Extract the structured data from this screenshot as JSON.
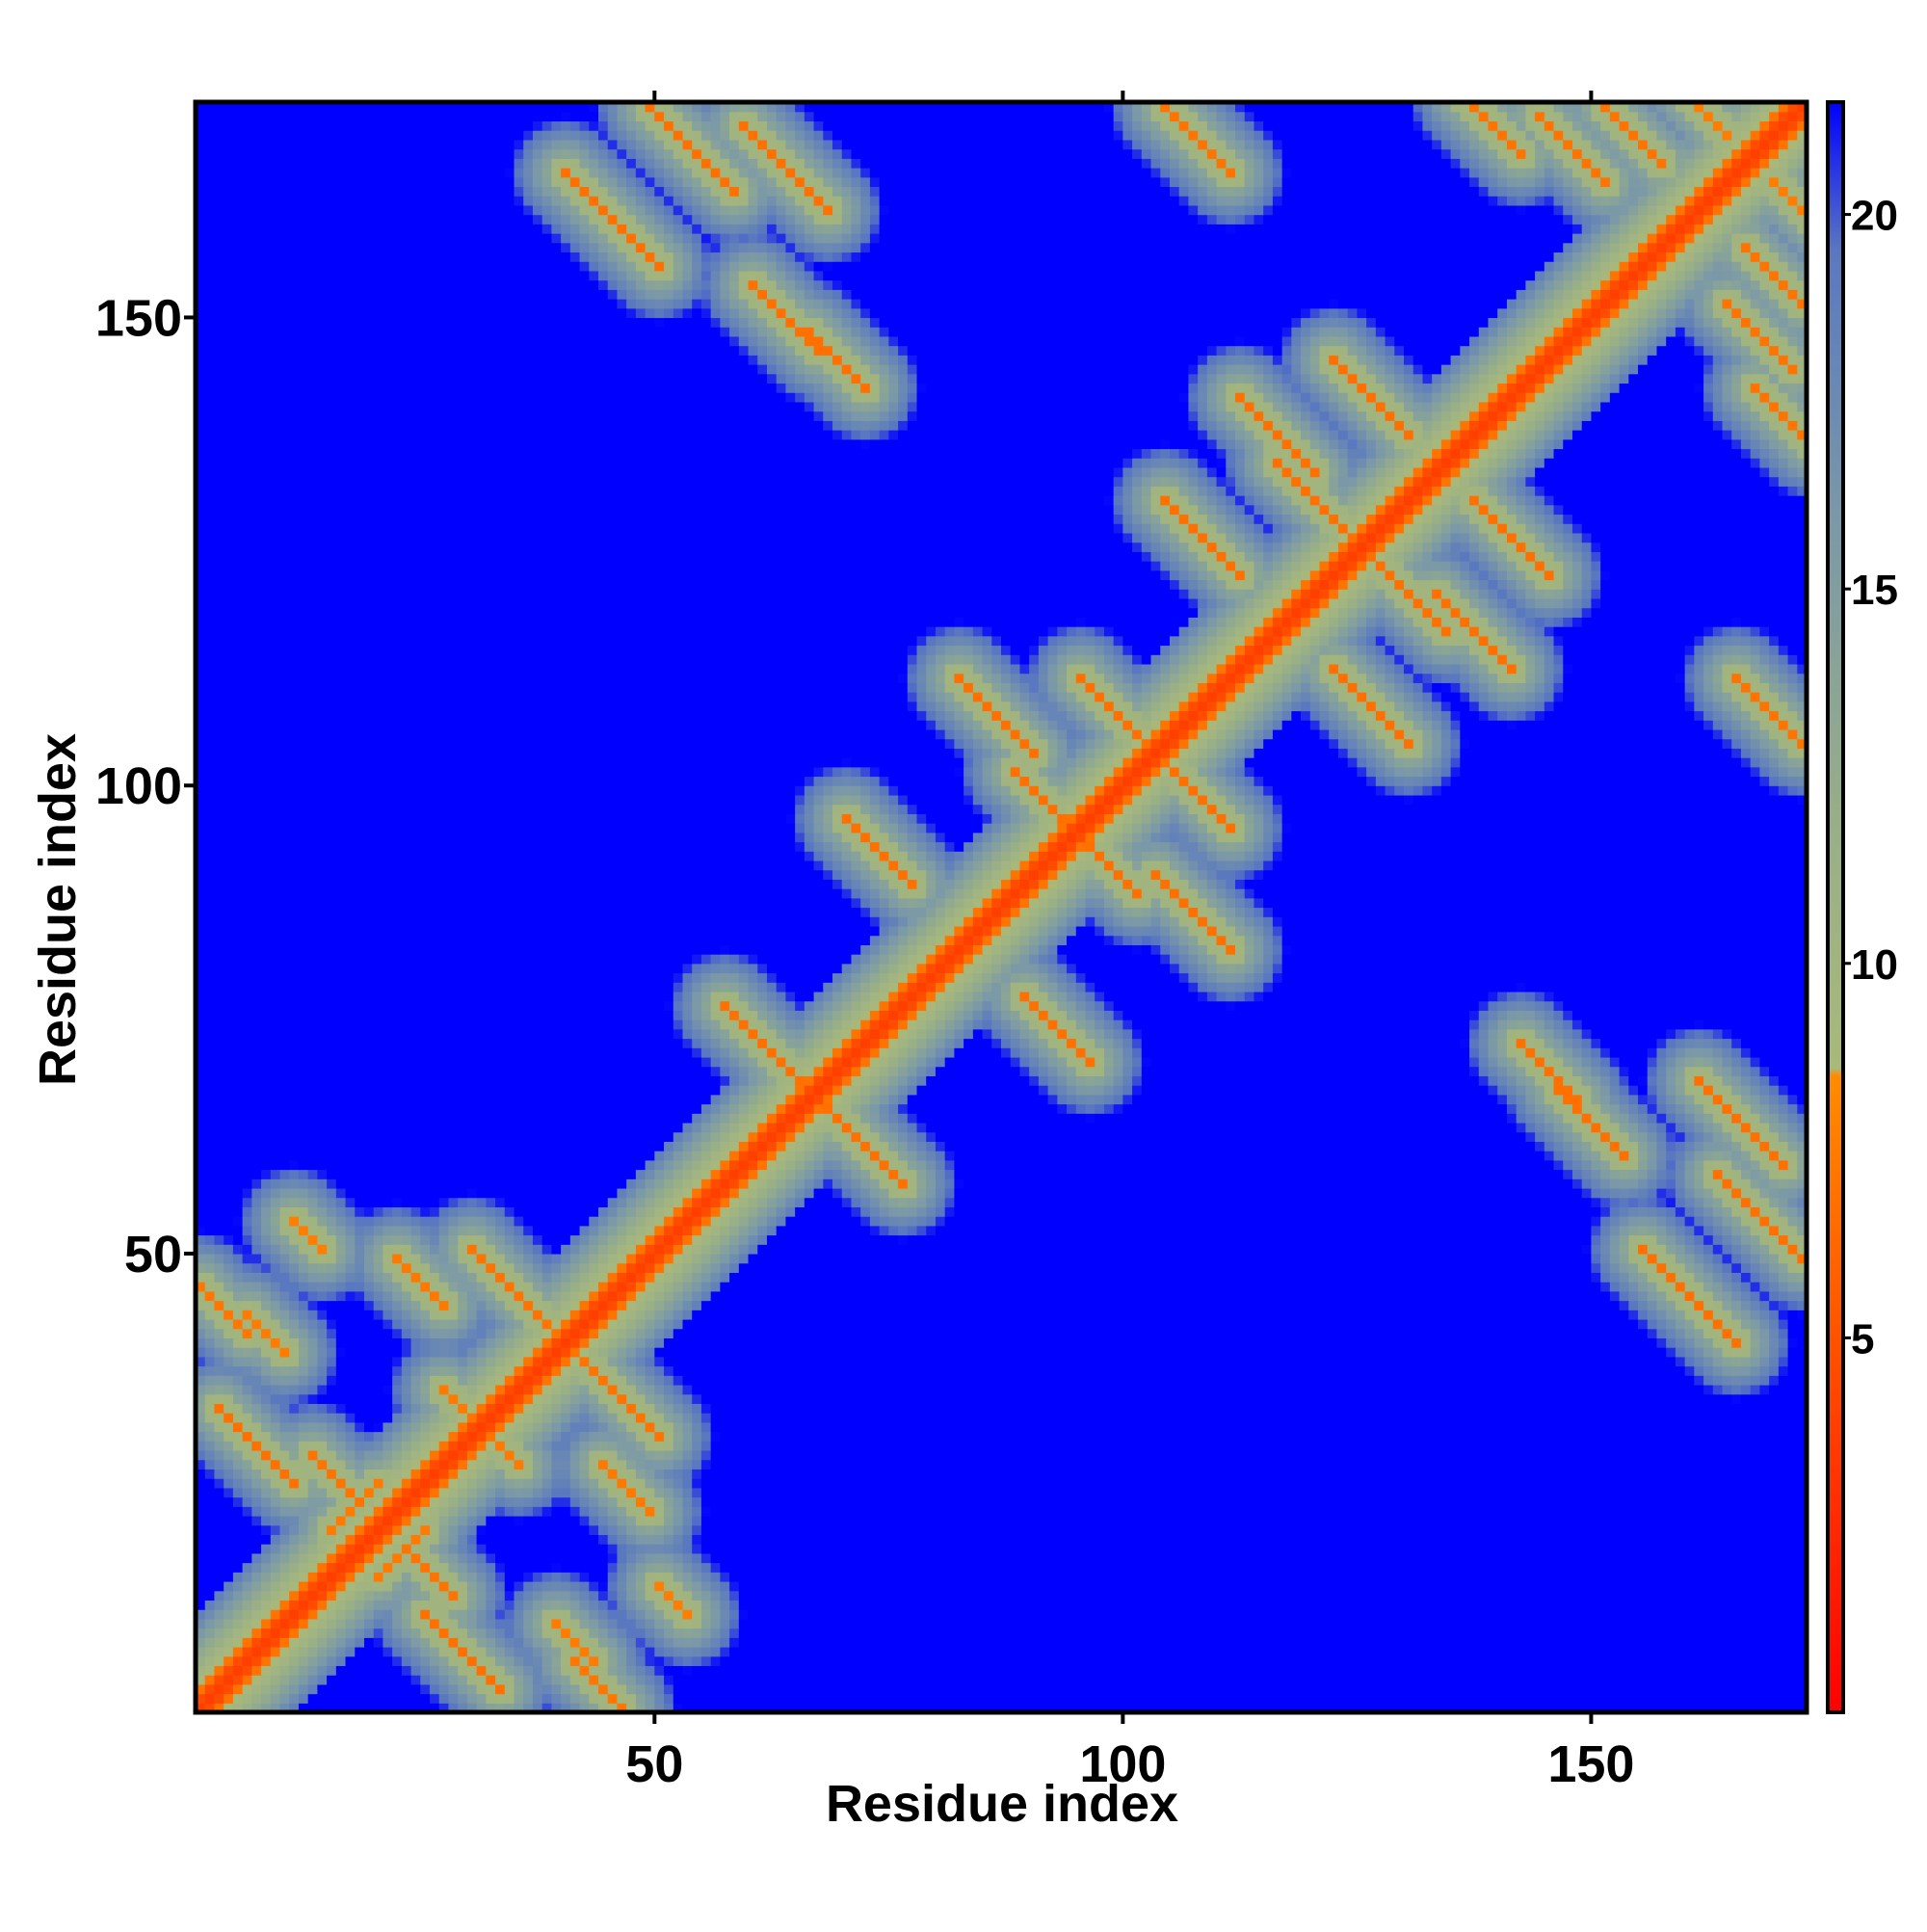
{
  "chart_data": {
    "type": "heatmap",
    "title": "",
    "xlabel": "Residue index",
    "ylabel": "Residue index",
    "xlim": [
      1,
      172
    ],
    "ylim": [
      1,
      172
    ],
    "xticks": [
      50,
      100,
      150
    ],
    "yticks": [
      50,
      100,
      150
    ],
    "n_residues": 172,
    "colorbar": {
      "range": [
        0,
        21.5
      ],
      "ticks": [
        5,
        10,
        15,
        20
      ],
      "stops": [
        {
          "value": 0,
          "color": "#ff0000"
        },
        {
          "value": 8.5,
          "color": "#ff8c00"
        },
        {
          "value": 8.6,
          "color": "#a9b97a"
        },
        {
          "value": 12,
          "color": "#97ae88"
        },
        {
          "value": 16,
          "color": "#7a98a8"
        },
        {
          "value": 19.5,
          "color": "#5a78c0"
        },
        {
          "value": 21.5,
          "color": "#0000ff"
        }
      ],
      "color_above_max": "#0000ff"
    },
    "description_values": {
      "diagonal_distance": 3.8,
      "background_distance": 22
    },
    "contact_features": [
      {
        "kind": "antiparallel",
        "i": 3,
        "j": 33,
        "len": 9,
        "d": 6.8
      },
      {
        "kind": "antiparallel",
        "i": 1,
        "j": 46,
        "len": 6,
        "d": 7.2
      },
      {
        "kind": "antiparallel",
        "i": 6,
        "j": 43,
        "len": 5,
        "d": 7.5
      },
      {
        "kind": "antiparallel",
        "i": 13,
        "j": 28,
        "len": 6,
        "d": 7.0
      },
      {
        "kind": "antiparallel",
        "i": 30,
        "j": 50,
        "len": 9,
        "d": 7.0
      },
      {
        "kind": "antiparallel",
        "i": 22,
        "j": 49,
        "len": 6,
        "d": 7.3
      },
      {
        "kind": "antiparallel",
        "i": 57,
        "j": 76,
        "len": 9,
        "d": 6.8
      },
      {
        "kind": "antiparallel",
        "i": 70,
        "j": 96,
        "len": 8,
        "d": 6.8
      },
      {
        "kind": "antiparallel",
        "i": 82,
        "j": 111,
        "len": 9,
        "d": 6.8
      },
      {
        "kind": "antiparallel",
        "i": 88,
        "j": 101,
        "len": 7,
        "d": 6.8
      },
      {
        "kind": "antiparallel",
        "i": 95,
        "j": 111,
        "len": 9,
        "d": 6.8
      },
      {
        "kind": "antiparallel",
        "i": 116,
        "j": 134,
        "len": 9,
        "d": 6.8
      },
      {
        "kind": "antiparallel",
        "i": 122,
        "j": 145,
        "len": 9,
        "d": 6.8
      },
      {
        "kind": "antiparallel",
        "i": 40,
        "j": 165,
        "len": 11,
        "d": 6.8
      },
      {
        "kind": "antiparallel",
        "i": 49,
        "j": 172,
        "len": 10,
        "d": 6.8
      },
      {
        "kind": "antiparallel",
        "i": 59,
        "j": 170,
        "len": 10,
        "d": 6.8
      },
      {
        "kind": "antiparallel",
        "i": 104,
        "j": 130,
        "len": 9,
        "d": 6.8
      },
      {
        "kind": "antiparallel",
        "i": 112,
        "j": 141,
        "len": 9,
        "d": 6.8
      },
      {
        "kind": "antiparallel",
        "i": 60,
        "j": 153,
        "len": 8,
        "d": 6.8
      },
      {
        "kind": "antiparallel",
        "i": 66,
        "j": 148,
        "len": 7,
        "d": 6.8
      },
      {
        "kind": "antiparallel",
        "i": 104,
        "j": 172,
        "len": 8,
        "d": 7.0
      },
      {
        "kind": "antiparallel",
        "i": 136,
        "j": 173,
        "len": 7,
        "d": 7.0
      },
      {
        "kind": "antiparallel",
        "i": 144,
        "j": 171,
        "len": 8,
        "d": 7.0
      },
      {
        "kind": "antiparallel",
        "i": 151,
        "j": 172,
        "len": 7,
        "d": 7.0
      },
      {
        "kind": "parallel",
        "i": 15,
        "j": 20,
        "len": 6,
        "d": 7.4
      },
      {
        "kind": "antiparallel",
        "i": 27,
        "j": 35,
        "len": 4,
        "d": 7.4
      },
      {
        "kind": "antiparallel",
        "i": 11,
        "j": 53,
        "len": 4,
        "d": 7.6
      },
      {
        "kind": "antiparallel",
        "i": 160,
        "j": 173,
        "len": 5,
        "d": 7.6
      }
    ]
  }
}
